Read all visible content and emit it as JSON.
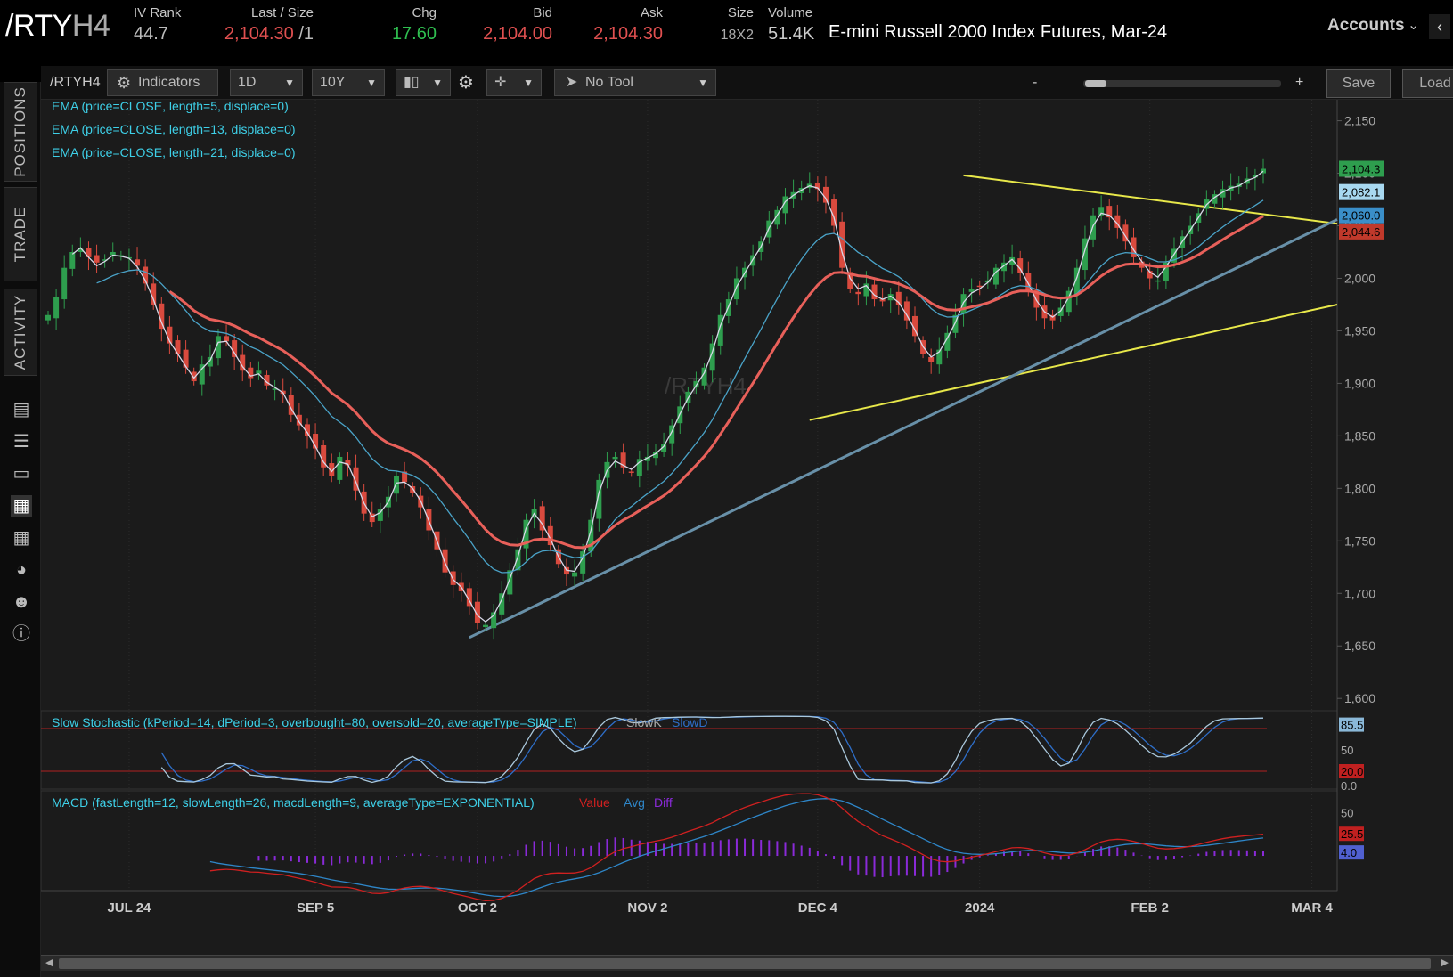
{
  "quote": {
    "symbol_main": "/RTY",
    "symbol_suffix": "H4",
    "iv_rank_label": "IV Rank",
    "iv_rank": "44.7",
    "last_label": "Last / Size",
    "last": "2,104.30",
    "last_size": "/1",
    "chg_label": "Chg",
    "chg": "17.60",
    "bid_label": "Bid",
    "bid": "2,104.00",
    "ask_label": "Ask",
    "ask": "2,104.30",
    "size_label": "Size",
    "size": "18X2",
    "volume_label": "Volume",
    "volume": "51.4K",
    "description": "E-mini Russell 2000 Index Futures, Mar-24",
    "accounts": "Accounts"
  },
  "sidebar": {
    "tabs": [
      "POSITIONS",
      "TRADE",
      "ACTIVITY"
    ],
    "icons": [
      "monitor-icon",
      "list-icon",
      "tv-icon",
      "chart-icon",
      "grid-icon",
      "gauge-icon",
      "people-icon",
      "help-icon"
    ]
  },
  "toolbar": {
    "symbol": "/RTYH4",
    "indicators": "Indicators",
    "aggregation": "1D",
    "timeframe": "10Y",
    "tool": "No Tool",
    "zoom_minus": "-",
    "zoom_plus": "+",
    "save": "Save",
    "load": "Load"
  },
  "chart_data": [
    {
      "type": "candlestick",
      "watermark": "/RTYH4",
      "studies": [
        "EMA (price=CLOSE, length=5, displace=0)",
        "EMA (price=CLOSE, length=13, displace=0)",
        "EMA (price=CLOSE, length=21, displace=0)"
      ],
      "y_ticks": [
        "2,150",
        "2,100",
        "2,050",
        "2,000",
        "1,950",
        "1,900",
        "1,850",
        "1,800",
        "1,750",
        "1,700",
        "1,650",
        "1,600"
      ],
      "y_tick_values": [
        2150,
        2100,
        2050,
        2000,
        1950,
        1900,
        1850,
        1800,
        1750,
        1700,
        1650,
        1600
      ],
      "ylim": [
        1590,
        2170
      ],
      "x_ticks": [
        "JUL 24",
        "SEP 5",
        "OCT 2",
        "NOV 2",
        "DEC 4",
        "2024",
        "FEB 2",
        "MAR 4"
      ],
      "x_tick_index": [
        10,
        33,
        53,
        74,
        95,
        115,
        136,
        156
      ],
      "price_badges": [
        {
          "text": "2,104.3",
          "value": 2104.3,
          "color": "#2e9e4e"
        },
        {
          "text": "2,082.1",
          "value": 2082.1,
          "color": "#a8d8f0"
        },
        {
          "text": "2,060.0",
          "value": 2060.0,
          "color": "#3a8ec8"
        },
        {
          "text": "2,044.6",
          "value": 2044.6,
          "color": "#c0392b"
        }
      ],
      "close": [
        1965,
        1982,
        2010,
        2025,
        2028,
        2020,
        2015,
        2018,
        2025,
        2022,
        2020,
        2012,
        1995,
        1975,
        1952,
        1938,
        1928,
        1915,
        1902,
        1918,
        1925,
        1945,
        1940,
        1925,
        1912,
        1905,
        1912,
        1898,
        1895,
        1890,
        1870,
        1860,
        1850,
        1838,
        1820,
        1812,
        1830,
        1822,
        1798,
        1776,
        1768,
        1780,
        1792,
        1812,
        1806,
        1796,
        1782,
        1760,
        1742,
        1720,
        1708,
        1702,
        1688,
        1672,
        1670,
        1682,
        1700,
        1722,
        1742,
        1770,
        1780,
        1760,
        1746,
        1728,
        1718,
        1720,
        1740,
        1770,
        1808,
        1825,
        1830,
        1820,
        1815,
        1828,
        1830,
        1835,
        1842,
        1860,
        1878,
        1892,
        1902,
        1915,
        1938,
        1965,
        1980,
        2000,
        2010,
        2022,
        2035,
        2055,
        2065,
        2078,
        2082,
        2086,
        2090,
        2085,
        2072,
        2050,
        2010,
        1990,
        1985,
        1995,
        1980,
        1978,
        1985,
        1975,
        1960,
        1945,
        1928,
        1920,
        1932,
        1948,
        1965,
        1985,
        1990,
        1992,
        1998,
        2010,
        2015,
        2020,
        2005,
        1988,
        1972,
        1962,
        1960,
        1972,
        1988,
        2010,
        2038,
        2060,
        2068,
        2058,
        2048,
        2035,
        2020,
        2010,
        2000,
        1998,
        2015,
        2028,
        2040,
        2050,
        2062,
        2075,
        2080,
        2085,
        2088,
        2090,
        2095,
        2098,
        2104.3
      ],
      "ema5_close_series": [
        1965,
        1977,
        1999,
        2023,
        2029,
        2020,
        2012,
        2016,
        2022,
        2021,
        2019,
        2011,
        1998,
        1980,
        1958,
        1940,
        1928,
        1916,
        1905,
        1914,
        1922,
        1939,
        1940,
        1929,
        1916,
        1907,
        1909,
        1901,
        1896,
        1891,
        1876,
        1863,
        1853,
        1840,
        1825,
        1816,
        1825,
        1823,
        1806,
        1786,
        1773,
        1777,
        1787,
        1805,
        1806,
        1800,
        1788,
        1769,
        1750,
        1729,
        1713,
        1706,
        1693,
        1679,
        1673,
        1679,
        1694,
        1714,
        1735,
        1762,
        1776,
        1766,
        1752,
        1735,
        1722,
        1721,
        1734,
        1760,
        1796,
        1817,
        1826,
        1822,
        1818,
        1825,
        1829,
        1833,
        1840,
        1854,
        1871,
        1886,
        1898,
        1910,
        1930,
        1955,
        1973,
        1992,
        2005,
        2018,
        2030,
        2048,
        2060,
        2073,
        2079,
        2084,
        2088,
        2086,
        2076,
        2058,
        2025,
        2000,
        1990,
        1993,
        1984,
        1980,
        1983,
        1977,
        1965,
        1951,
        1935,
        1925,
        1930,
        1943,
        1958,
        1977,
        1986,
        1990,
        1996,
        2006,
        2012,
        2018,
        2009,
        1995,
        1979,
        1968,
        1963,
        1969,
        1982,
        2001,
        2027,
        2050,
        2062,
        2060,
        2052,
        2040,
        2027,
        2016,
        2006,
        2001,
        2011,
        2023,
        2035,
        2046,
        2058,
        2070,
        2077,
        2082,
        2086,
        2088,
        2093,
        2096,
        2102
      ]
    },
    {
      "type": "line",
      "title": "Slow Stochastic (kPeriod=14, dPeriod=3, overbought=80, oversold=20, averageType=SIMPLE)",
      "series": [
        {
          "name": "SlowK"
        },
        {
          "name": "SlowD"
        }
      ],
      "y_ticks": [
        "85.5",
        "50",
        "20.0",
        "0.0"
      ],
      "y_tick_values": [
        85.5,
        50,
        20,
        0
      ],
      "overbought": 80,
      "oversold": 20,
      "ylim": [
        -5,
        105
      ]
    },
    {
      "type": "line",
      "title": "MACD (fastLength=12, slowLength=26, macdLength=9, averageType=EXPONENTIAL)",
      "series": [
        {
          "name": "Value"
        },
        {
          "name": "Avg"
        },
        {
          "name": "Diff"
        }
      ],
      "y_ticks": [
        "50",
        "25.5",
        "4.0"
      ],
      "y_tick_values": [
        50,
        25.5,
        4
      ],
      "ylim": [
        -40,
        75
      ]
    }
  ],
  "colors": {
    "up": "#2e9e4e",
    "down": "#d94a3e",
    "ema5": "#d8d8e8",
    "ema13": "#4aa3c8",
    "ema21": "#e8605a",
    "trend_yellow": "#e8e84a",
    "trend_blue": "#6890a8",
    "study_label": "#3ed0e8",
    "stoch_k": "#aac8dc",
    "stoch_d": "#2e6ec8",
    "macd_value": "#d02020",
    "macd_avg": "#2e86c8",
    "macd_diff": "#8a2ad8"
  }
}
